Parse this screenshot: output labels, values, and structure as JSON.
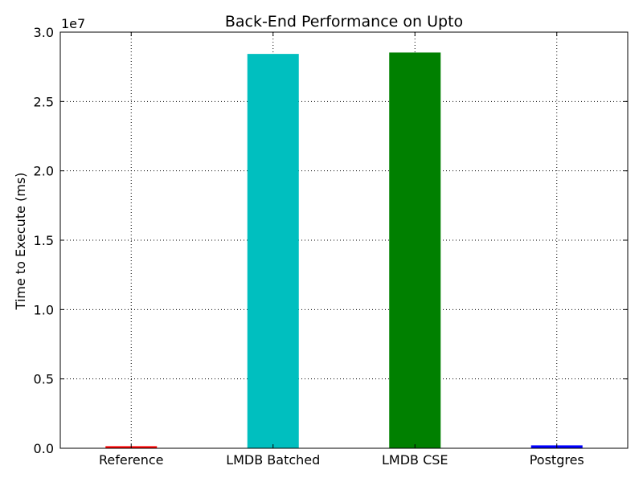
{
  "chart_data": {
    "type": "bar",
    "title": "Back-End Performance on  Upto",
    "xlabel": "",
    "ylabel": "Time to Execute (ms)",
    "y_multiplier_label": "1e7",
    "ylim": [
      0,
      30000000
    ],
    "y_ticks": [
      0,
      5000000,
      10000000,
      15000000,
      20000000,
      25000000,
      30000000
    ],
    "y_tick_labels": [
      "0.0",
      "0.5",
      "1.0",
      "1.5",
      "2.0",
      "2.5",
      "3.0"
    ],
    "grid": true,
    "categories": [
      "Reference",
      "LMDB Batched",
      "LMDB CSE",
      "Postgres"
    ],
    "values": [
      120000,
      28400000,
      28500000,
      180000
    ],
    "colors": [
      "#ff0000",
      "#00bfbf",
      "#008000",
      "#0000ff"
    ]
  }
}
